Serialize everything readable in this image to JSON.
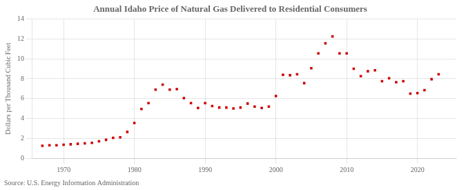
{
  "chart_data": {
    "type": "scatter",
    "title": "Annual Idaho Price of Natural Gas Delivered to Residential Consumers",
    "y_label": "Dollars per Thousand Cubic Feet",
    "annotation": "Source: U.S. Energy Information Administration",
    "x": [
      1967,
      1968,
      1969,
      1970,
      1971,
      1972,
      1973,
      1974,
      1975,
      1976,
      1977,
      1978,
      1979,
      1980,
      1981,
      1982,
      1983,
      1984,
      1985,
      1986,
      1987,
      1988,
      1989,
      1990,
      1991,
      1992,
      1993,
      1994,
      1995,
      1996,
      1997,
      1998,
      1999,
      2000,
      2001,
      2002,
      2003,
      2004,
      2005,
      2006,
      2007,
      2008,
      2009,
      2010,
      2011,
      2012,
      2013,
      2014,
      2015,
      2016,
      2017,
      2018,
      2019,
      2020,
      2021,
      2022,
      2023
    ],
    "values": [
      1.25,
      1.3,
      1.3,
      1.35,
      1.4,
      1.45,
      1.5,
      1.55,
      1.7,
      1.85,
      2.05,
      2.1,
      2.65,
      3.55,
      4.95,
      5.55,
      6.9,
      7.4,
      6.9,
      6.95,
      6.05,
      5.55,
      5.05,
      5.55,
      5.25,
      5.1,
      5.1,
      5.0,
      5.1,
      5.5,
      5.2,
      5.05,
      5.2,
      6.25,
      8.4,
      8.35,
      8.45,
      7.55,
      9.05,
      10.55,
      11.55,
      12.25,
      10.55,
      10.55,
      9.0,
      8.25,
      8.75,
      8.85,
      7.75,
      8.05,
      7.65,
      7.75,
      6.5,
      6.55,
      6.85,
      7.95,
      8.45
    ],
    "color": "#cc0000",
    "marker": "square",
    "xlim": [
      1965.5,
      2025.5
    ],
    "xticks": [
      1970,
      1980,
      1990,
      2000,
      2010,
      2020
    ],
    "ylim": [
      0,
      14
    ],
    "yticks": [
      0,
      2,
      4,
      6,
      8,
      10,
      12,
      14
    ],
    "grid": true
  }
}
